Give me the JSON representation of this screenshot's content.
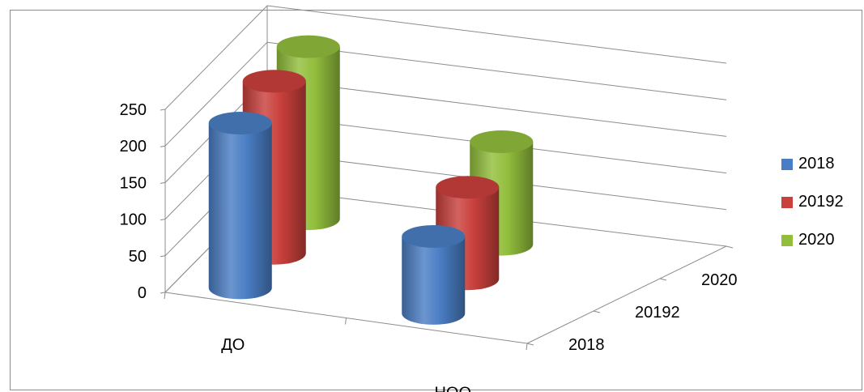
{
  "chart_data": {
    "type": "bar",
    "subtype": "3d-cylinder",
    "title": "",
    "categories": [
      "ДО",
      "НОО"
    ],
    "series": [
      {
        "name": "2018",
        "values": [
          225,
          105
        ],
        "color": "#4a7ec4"
      },
      {
        "name": "20192",
        "values": [
          235,
          125
        ],
        "color": "#c9403c"
      },
      {
        "name": "2020",
        "values": [
          235,
          140
        ],
        "color": "#92be3c"
      }
    ],
    "depth_labels": [
      "2018",
      "20192",
      "2020"
    ],
    "y_ticks": [
      "0",
      "50",
      "100",
      "150",
      "200",
      "250"
    ],
    "ylim": [
      0,
      250
    ],
    "grid": true,
    "legend_position": "right"
  }
}
